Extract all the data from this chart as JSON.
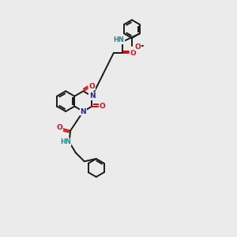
{
  "bg_color": "#ebebeb",
  "bond_color": "#1a1a1a",
  "N_color": "#2020bb",
  "O_color": "#cc1111",
  "NH_color": "#2a8888",
  "lw": 1.4,
  "xlim": [
    0,
    10
  ],
  "ylim": [
    0,
    11
  ]
}
